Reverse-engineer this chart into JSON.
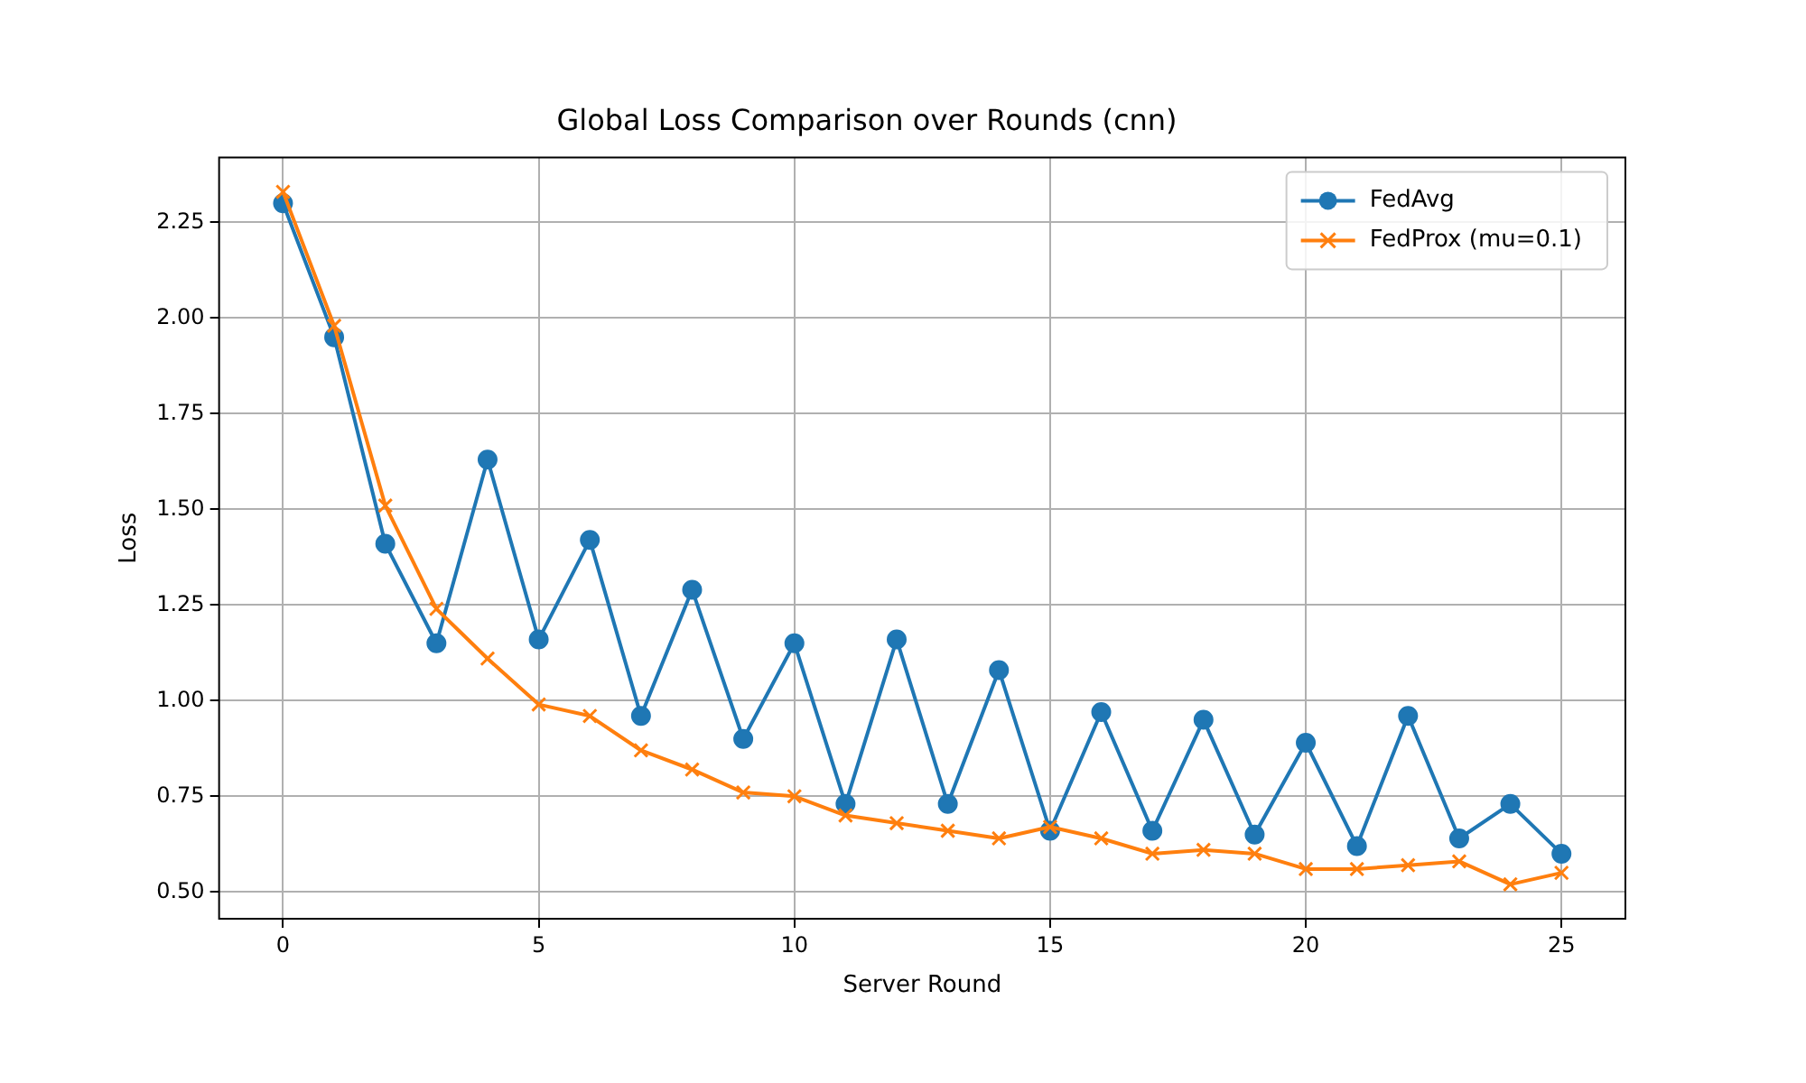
{
  "chart_data": {
    "type": "line",
    "title": "Global Loss Comparison over Rounds (cnn)",
    "xlabel": "Server Round",
    "ylabel": "Loss",
    "x": [
      0,
      1,
      2,
      3,
      4,
      5,
      6,
      7,
      8,
      9,
      10,
      11,
      12,
      13,
      14,
      15,
      16,
      17,
      18,
      19,
      20,
      21,
      22,
      23,
      24,
      25
    ],
    "series": [
      {
        "name": "FedAvg",
        "color": "#1f77b4",
        "marker": "circle",
        "values": [
          2.3,
          1.95,
          1.41,
          1.15,
          1.63,
          1.16,
          1.42,
          0.96,
          1.29,
          0.9,
          1.15,
          0.73,
          1.16,
          0.73,
          1.08,
          0.66,
          0.97,
          0.66,
          0.95,
          0.65,
          0.89,
          0.62,
          0.96,
          0.64,
          0.73,
          0.6
        ]
      },
      {
        "name": "FedProx (mu=0.1)",
        "color": "#ff7f0e",
        "marker": "cross",
        "values": [
          2.33,
          1.98,
          1.51,
          1.24,
          1.11,
          0.99,
          0.96,
          0.87,
          0.82,
          0.76,
          0.75,
          0.7,
          0.68,
          0.66,
          0.64,
          0.67,
          0.64,
          0.6,
          0.61,
          0.6,
          0.56,
          0.56,
          0.57,
          0.58,
          0.52,
          0.55
        ]
      }
    ],
    "xlim": [
      -1.25,
      26.25
    ],
    "xticks": [
      0,
      5,
      10,
      15,
      20,
      25
    ],
    "ylim": [
      0.43,
      2.42
    ],
    "yticks": [
      {
        "value": 0.5,
        "label": "0.50"
      },
      0.75,
      {
        "value": 1,
        "label": "1.00"
      },
      1.25,
      {
        "value": 1.5,
        "label": "1.50"
      },
      1.75,
      {
        "value": 2,
        "label": "2.00"
      },
      2.25
    ],
    "grid": true,
    "legend": "top right",
    "line_style": "solid"
  }
}
